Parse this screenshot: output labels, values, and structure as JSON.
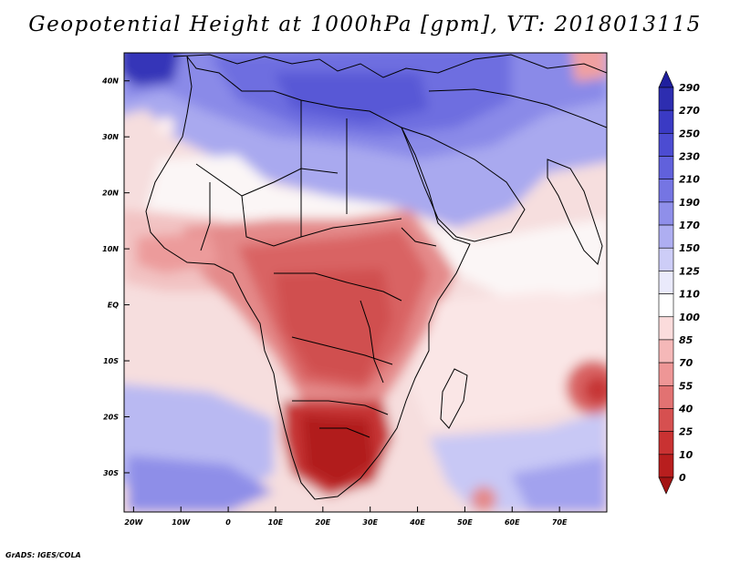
{
  "title": "Geopotential Height at 1000hPa [gpm], VT: 2018013115",
  "credit": "GrADS: IGES/COLA",
  "map": {
    "lon_range": [
      -22,
      80
    ],
    "lat_range": [
      -37,
      45
    ],
    "lon_ticks": [
      {
        "lon": -20,
        "label": "20W"
      },
      {
        "lon": -10,
        "label": "10W"
      },
      {
        "lon": 0,
        "label": "0"
      },
      {
        "lon": 10,
        "label": "10E"
      },
      {
        "lon": 20,
        "label": "20E"
      },
      {
        "lon": 30,
        "label": "30E"
      },
      {
        "lon": 40,
        "label": "40E"
      },
      {
        "lon": 50,
        "label": "50E"
      },
      {
        "lon": 60,
        "label": "60E"
      },
      {
        "lon": 70,
        "label": "70E"
      }
    ],
    "lat_ticks": [
      {
        "lat": 40,
        "label": "40N"
      },
      {
        "lat": 30,
        "label": "30N"
      },
      {
        "lat": 20,
        "label": "20N"
      },
      {
        "lat": 10,
        "label": "10N"
      },
      {
        "lat": 0,
        "label": "EQ"
      },
      {
        "lat": -10,
        "label": "10S"
      },
      {
        "lat": -20,
        "label": "20S"
      },
      {
        "lat": -30,
        "label": "30S"
      }
    ]
  },
  "colorbar": {
    "levels": [
      "290",
      "270",
      "250",
      "230",
      "210",
      "190",
      "170",
      "150",
      "125",
      "110",
      "100",
      "85",
      "70",
      "55",
      "40",
      "25",
      "10",
      "0"
    ],
    "colors": [
      "#1f1f9e",
      "#2d2db0",
      "#3a3ac4",
      "#4c4cd2",
      "#6161dc",
      "#7575e3",
      "#8f8fea",
      "#aeaef1",
      "#cdcdf7",
      "#eaeafb",
      "#ffffff",
      "#fbdcdc",
      "#f5b8b8",
      "#ee9696",
      "#e27272",
      "#d65050",
      "#c93232",
      "#b81e1e",
      "#a31414"
    ]
  },
  "field_labels": {
    "high": "High geopotential height over Europe/Mediterranean (blue)",
    "low": "Low geopotential height over southern Africa (red)"
  }
}
